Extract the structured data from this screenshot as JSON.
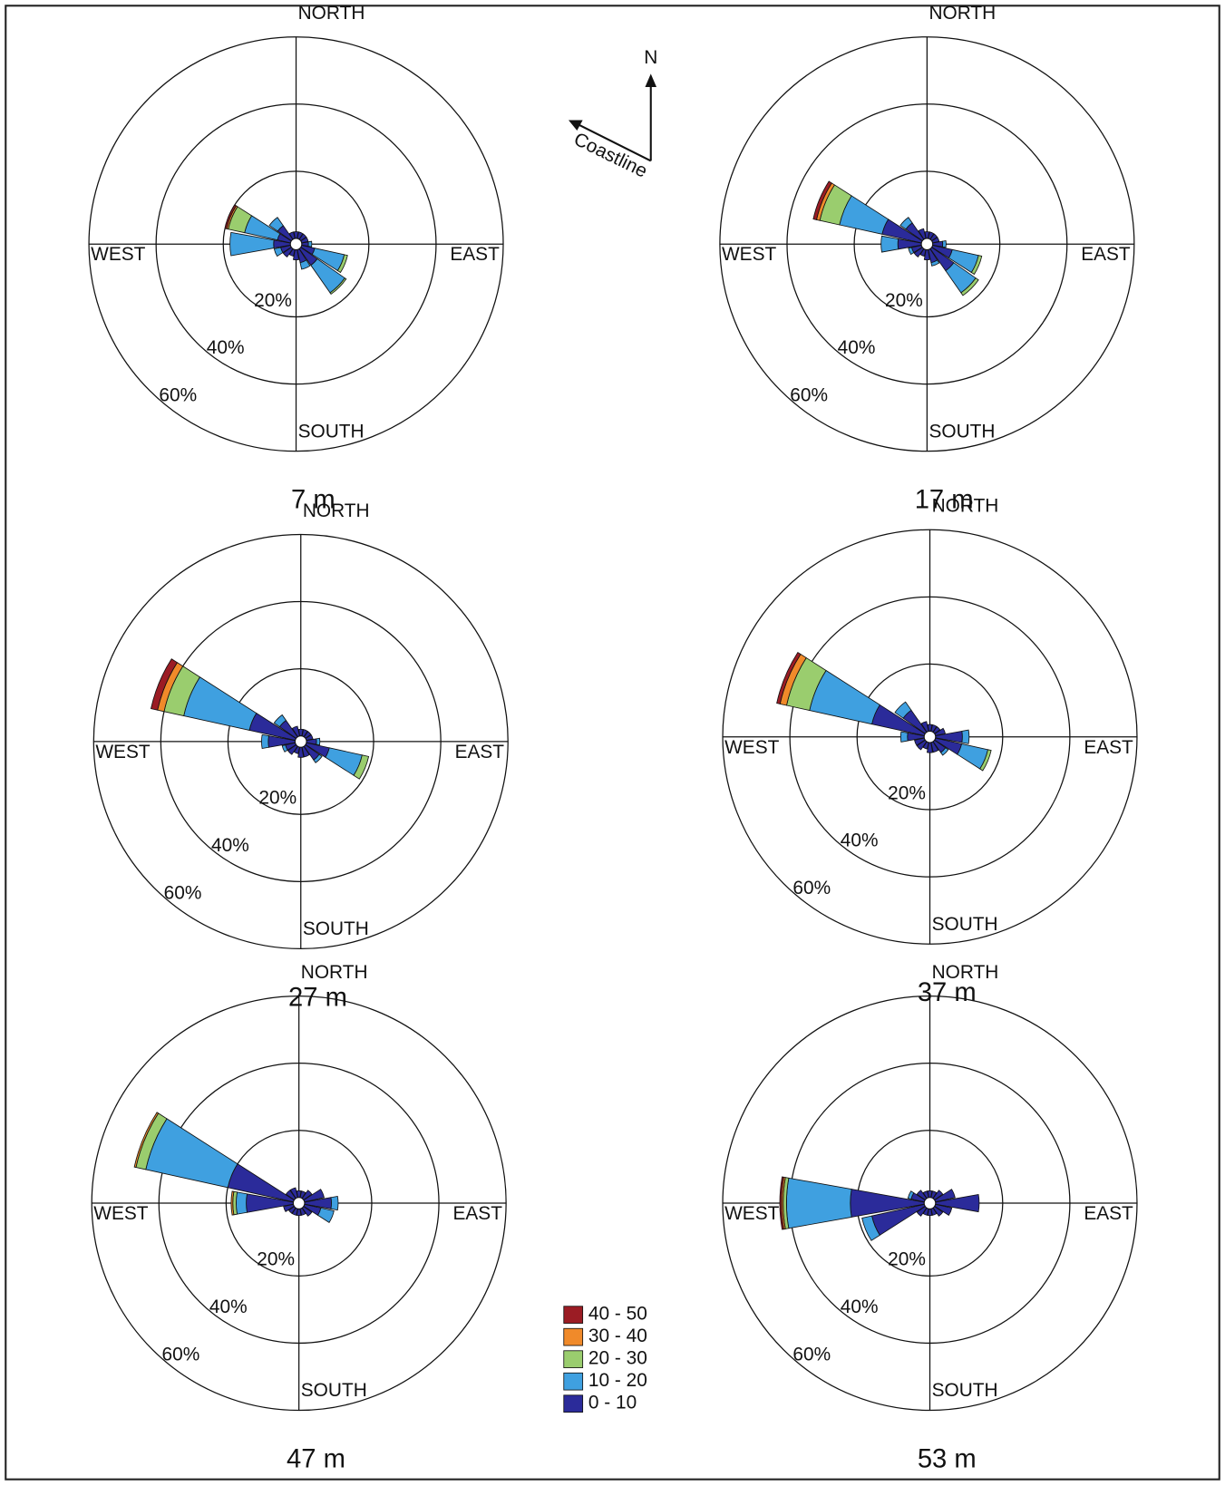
{
  "annotation": {
    "north": "N",
    "coastline": "Coastline"
  },
  "legend": [
    {
      "name": "40 - 50",
      "color": "#9b1c24"
    },
    {
      "name": "30 - 40",
      "color": "#f08a2a"
    },
    {
      "name": "20 - 30",
      "color": "#9acd6e"
    },
    {
      "name": "10 - 20",
      "color": "#3fa0e0"
    },
    {
      "name": "0 - 10",
      "color": "#2b2b9a"
    }
  ],
  "chart_data": [
    {
      "type": "windrose",
      "title": "7 m",
      "categories": [
        "NORTH",
        null,
        null,
        null,
        "EAST",
        null,
        null,
        null,
        "SOUTH",
        null,
        null,
        null,
        "WEST",
        null,
        null,
        null
      ],
      "rlim": [
        0,
        60
      ],
      "rticks": [
        {
          "value": 20,
          "label": "20%"
        },
        {
          "value": 40,
          "label": "40%"
        },
        {
          "value": 60,
          "label": "60%"
        }
      ],
      "series": [
        {
          "values": [
            0,
            0,
            0,
            0,
            0,
            0,
            0,
            0,
            0,
            0,
            0,
            0,
            0,
            0.5,
            0,
            0
          ]
        },
        {
          "values": [
            0,
            0,
            0,
            0,
            0,
            0,
            0,
            0,
            0,
            0,
            0,
            0,
            0,
            0.5,
            0,
            0
          ]
        },
        {
          "values": [
            0,
            0,
            0,
            0,
            0,
            1,
            0.5,
            0,
            0,
            0,
            0,
            0,
            0,
            5,
            0,
            0
          ]
        },
        {
          "values": [
            0,
            0,
            0,
            0,
            1,
            9,
            10,
            2,
            0,
            0,
            0,
            2,
            13,
            10,
            3,
            0
          ]
        },
        {
          "values": [
            2,
            2,
            2,
            2,
            2,
            4,
            6,
            4,
            3,
            2,
            3,
            3,
            5,
            4,
            5,
            2
          ]
        }
      ]
    },
    {
      "type": "windrose",
      "title": "17 m",
      "categories": [
        "NORTH",
        null,
        null,
        null,
        "EAST",
        null,
        null,
        null,
        "SOUTH",
        null,
        null,
        null,
        "WEST",
        null,
        null,
        null
      ],
      "rlim": [
        0,
        60
      ],
      "rticks": [
        {
          "value": 20,
          "label": "20%"
        },
        {
          "value": 40,
          "label": "40%"
        },
        {
          "value": 60,
          "label": "60%"
        }
      ],
      "series": [
        {
          "values": [
            0,
            0,
            0,
            0,
            0,
            0,
            0,
            0,
            0,
            0,
            0,
            0,
            0,
            1,
            0,
            0
          ]
        },
        {
          "values": [
            0,
            0,
            0,
            0,
            0,
            0,
            0,
            0,
            0,
            0,
            0,
            0,
            0,
            1,
            0,
            0
          ]
        },
        {
          "values": [
            0,
            0,
            0,
            0,
            0,
            1,
            1,
            0,
            0,
            0,
            0,
            0,
            0,
            6,
            0,
            0
          ]
        },
        {
          "values": [
            0,
            0,
            0,
            0,
            1,
            8,
            8,
            1,
            0,
            0,
            0,
            1,
            5,
            13,
            2,
            0
          ]
        },
        {
          "values": [
            2,
            2,
            2,
            2,
            3,
            6,
            8,
            4,
            3,
            2,
            3,
            3,
            7,
            12,
            6,
            3
          ]
        }
      ]
    },
    {
      "type": "windrose",
      "title": "27 m",
      "categories": [
        "NORTH",
        null,
        null,
        null,
        "EAST",
        null,
        null,
        null,
        "SOUTH",
        null,
        null,
        null,
        "WEST",
        null,
        null,
        null
      ],
      "rlim": [
        0,
        60
      ],
      "rticks": [
        {
          "value": 20,
          "label": "20%"
        },
        {
          "value": 40,
          "label": "40%"
        },
        {
          "value": 60,
          "label": "60%"
        }
      ],
      "series": [
        {
          "values": [
            0,
            0,
            0,
            0,
            0,
            0,
            0,
            0,
            0,
            0,
            0,
            0,
            0,
            2,
            0,
            0
          ]
        },
        {
          "values": [
            0,
            0,
            0,
            0,
            0,
            0,
            0,
            0,
            0,
            0,
            0,
            0,
            0,
            2,
            0,
            0
          ]
        },
        {
          "values": [
            0,
            0,
            0,
            0,
            0,
            2,
            0,
            0,
            0,
            0,
            0,
            0,
            0,
            6,
            0,
            0
          ]
        },
        {
          "values": [
            0,
            0,
            0,
            0,
            1,
            10,
            1,
            0,
            0,
            0,
            0,
            1,
            2,
            20,
            2,
            0
          ]
        },
        {
          "values": [
            2,
            2,
            2,
            2,
            3,
            7,
            5,
            3,
            3,
            2,
            3,
            3,
            8,
            14,
            6,
            3
          ]
        }
      ]
    },
    {
      "type": "windrose",
      "title": "37 m",
      "categories": [
        "NORTH",
        null,
        null,
        null,
        "EAST",
        null,
        null,
        null,
        "SOUTH",
        null,
        null,
        null,
        "WEST",
        null,
        null,
        null
      ],
      "rlim": [
        0,
        60
      ],
      "rticks": [
        {
          "value": 20,
          "label": "20%"
        },
        {
          "value": 40,
          "label": "40%"
        },
        {
          "value": 60,
          "label": "60%"
        }
      ],
      "series": [
        {
          "values": [
            0,
            0,
            0,
            0,
            0,
            0,
            0,
            0,
            0,
            0,
            0,
            0,
            0,
            1,
            0,
            0
          ]
        },
        {
          "values": [
            0,
            0,
            0,
            0,
            0,
            0,
            0,
            0,
            0,
            0,
            0,
            0,
            0,
            2,
            0,
            0
          ]
        },
        {
          "values": [
            0,
            0,
            0,
            0,
            0,
            1,
            0,
            0,
            0,
            0,
            0,
            0,
            0,
            7,
            0,
            0
          ]
        },
        {
          "values": [
            0,
            0,
            0,
            0,
            2,
            8,
            1,
            0,
            0,
            0,
            0,
            0,
            2,
            19,
            3,
            0
          ]
        },
        {
          "values": [
            2,
            2,
            2,
            3,
            8,
            8,
            4,
            3,
            3,
            2,
            3,
            3,
            5,
            16,
            8,
            3
          ]
        }
      ]
    },
    {
      "type": "windrose",
      "title": "47 m",
      "categories": [
        "NORTH",
        null,
        null,
        null,
        "EAST",
        null,
        null,
        null,
        "SOUTH",
        null,
        null,
        null,
        "WEST",
        null,
        null,
        null
      ],
      "rlim": [
        0,
        60
      ],
      "rticks": [
        {
          "value": 20,
          "label": "20%"
        },
        {
          "value": 40,
          "label": "40%"
        },
        {
          "value": 60,
          "label": "60%"
        }
      ],
      "series": [
        {
          "values": [
            0,
            0,
            0,
            0,
            0,
            0,
            0,
            0,
            0,
            0,
            0,
            0,
            0,
            0,
            0,
            0
          ]
        },
        {
          "values": [
            0,
            0,
            0,
            0,
            0,
            0,
            0,
            0,
            0,
            0,
            0,
            0,
            0.5,
            0.5,
            0,
            0
          ]
        },
        {
          "values": [
            0,
            0,
            0,
            0,
            0,
            0,
            0,
            0,
            0,
            0,
            0,
            0,
            1,
            3,
            0,
            0
          ]
        },
        {
          "values": [
            0,
            0,
            0,
            0,
            2,
            4,
            0,
            0,
            0,
            0,
            0,
            0,
            3,
            25,
            0,
            0
          ]
        },
        {
          "values": [
            2,
            2,
            3,
            6,
            8,
            5,
            3,
            2,
            2,
            2,
            2,
            3,
            14,
            20,
            3,
            3
          ]
        }
      ]
    },
    {
      "type": "windrose",
      "title": "53 m",
      "categories": [
        "NORTH",
        null,
        null,
        null,
        "EAST",
        null,
        null,
        null,
        "SOUTH",
        null,
        null,
        null,
        "WEST",
        null,
        null,
        null
      ],
      "rlim": [
        0,
        60
      ],
      "rticks": [
        {
          "value": 20,
          "label": "20%"
        },
        {
          "value": 40,
          "label": "40%"
        },
        {
          "value": 60,
          "label": "60%"
        }
      ],
      "series": [
        {
          "values": [
            0,
            0,
            0,
            0,
            0,
            0,
            0,
            0,
            0,
            0,
            0,
            0,
            0.5,
            0,
            0,
            0
          ]
        },
        {
          "values": [
            0,
            0,
            0,
            0,
            0,
            0,
            0,
            0,
            0,
            0,
            0,
            0,
            0.5,
            0,
            0,
            0
          ]
        },
        {
          "values": [
            0,
            0,
            0,
            0,
            0,
            0,
            0,
            0,
            0,
            0,
            0,
            0,
            1,
            0,
            0,
            0
          ]
        },
        {
          "values": [
            0,
            0,
            0,
            0,
            0,
            0,
            0,
            0,
            0,
            0,
            0,
            3,
            19,
            1,
            0,
            0
          ]
        },
        {
          "values": [
            2,
            2,
            3,
            6,
            13,
            5,
            3,
            2,
            2,
            2,
            3,
            16,
            22,
            4,
            3,
            2
          ]
        }
      ]
    }
  ]
}
